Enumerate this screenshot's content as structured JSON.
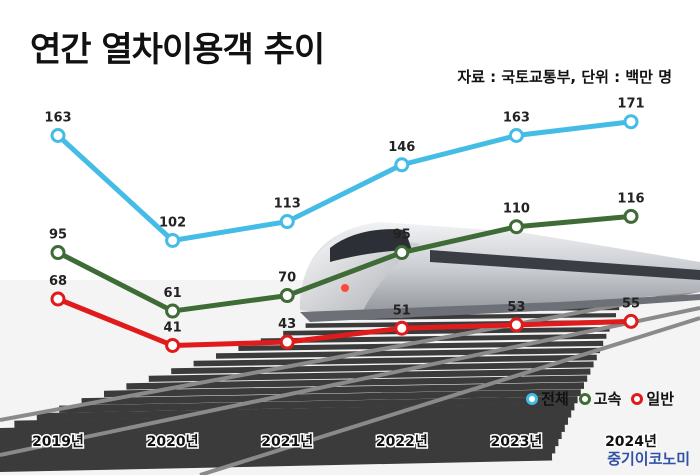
{
  "header": {
    "title": "연간 열차이용객 추이",
    "source": "자료 : 국토교통부, 단위 : 백만 명"
  },
  "brand": "중기이코노미",
  "colors": {
    "total": "#45bce6",
    "express": "#3f6b36",
    "regular": "#e01b1b"
  },
  "chart_data": {
    "type": "line",
    "categories": [
      "2019년",
      "2020년",
      "2021년",
      "2022년",
      "2023년",
      "2024년"
    ],
    "series": [
      {
        "name": "전체",
        "values": [
          163,
          102,
          113,
          146,
          163,
          171
        ]
      },
      {
        "name": "고속",
        "values": [
          95,
          61,
          70,
          95,
          110,
          116
        ]
      },
      {
        "name": "일반",
        "values": [
          68,
          41,
          43,
          51,
          53,
          55
        ]
      }
    ],
    "title": "연간 열차이용객 추이",
    "xlabel": "",
    "ylabel": "",
    "legend_position": "bottom-right",
    "grid": false
  }
}
